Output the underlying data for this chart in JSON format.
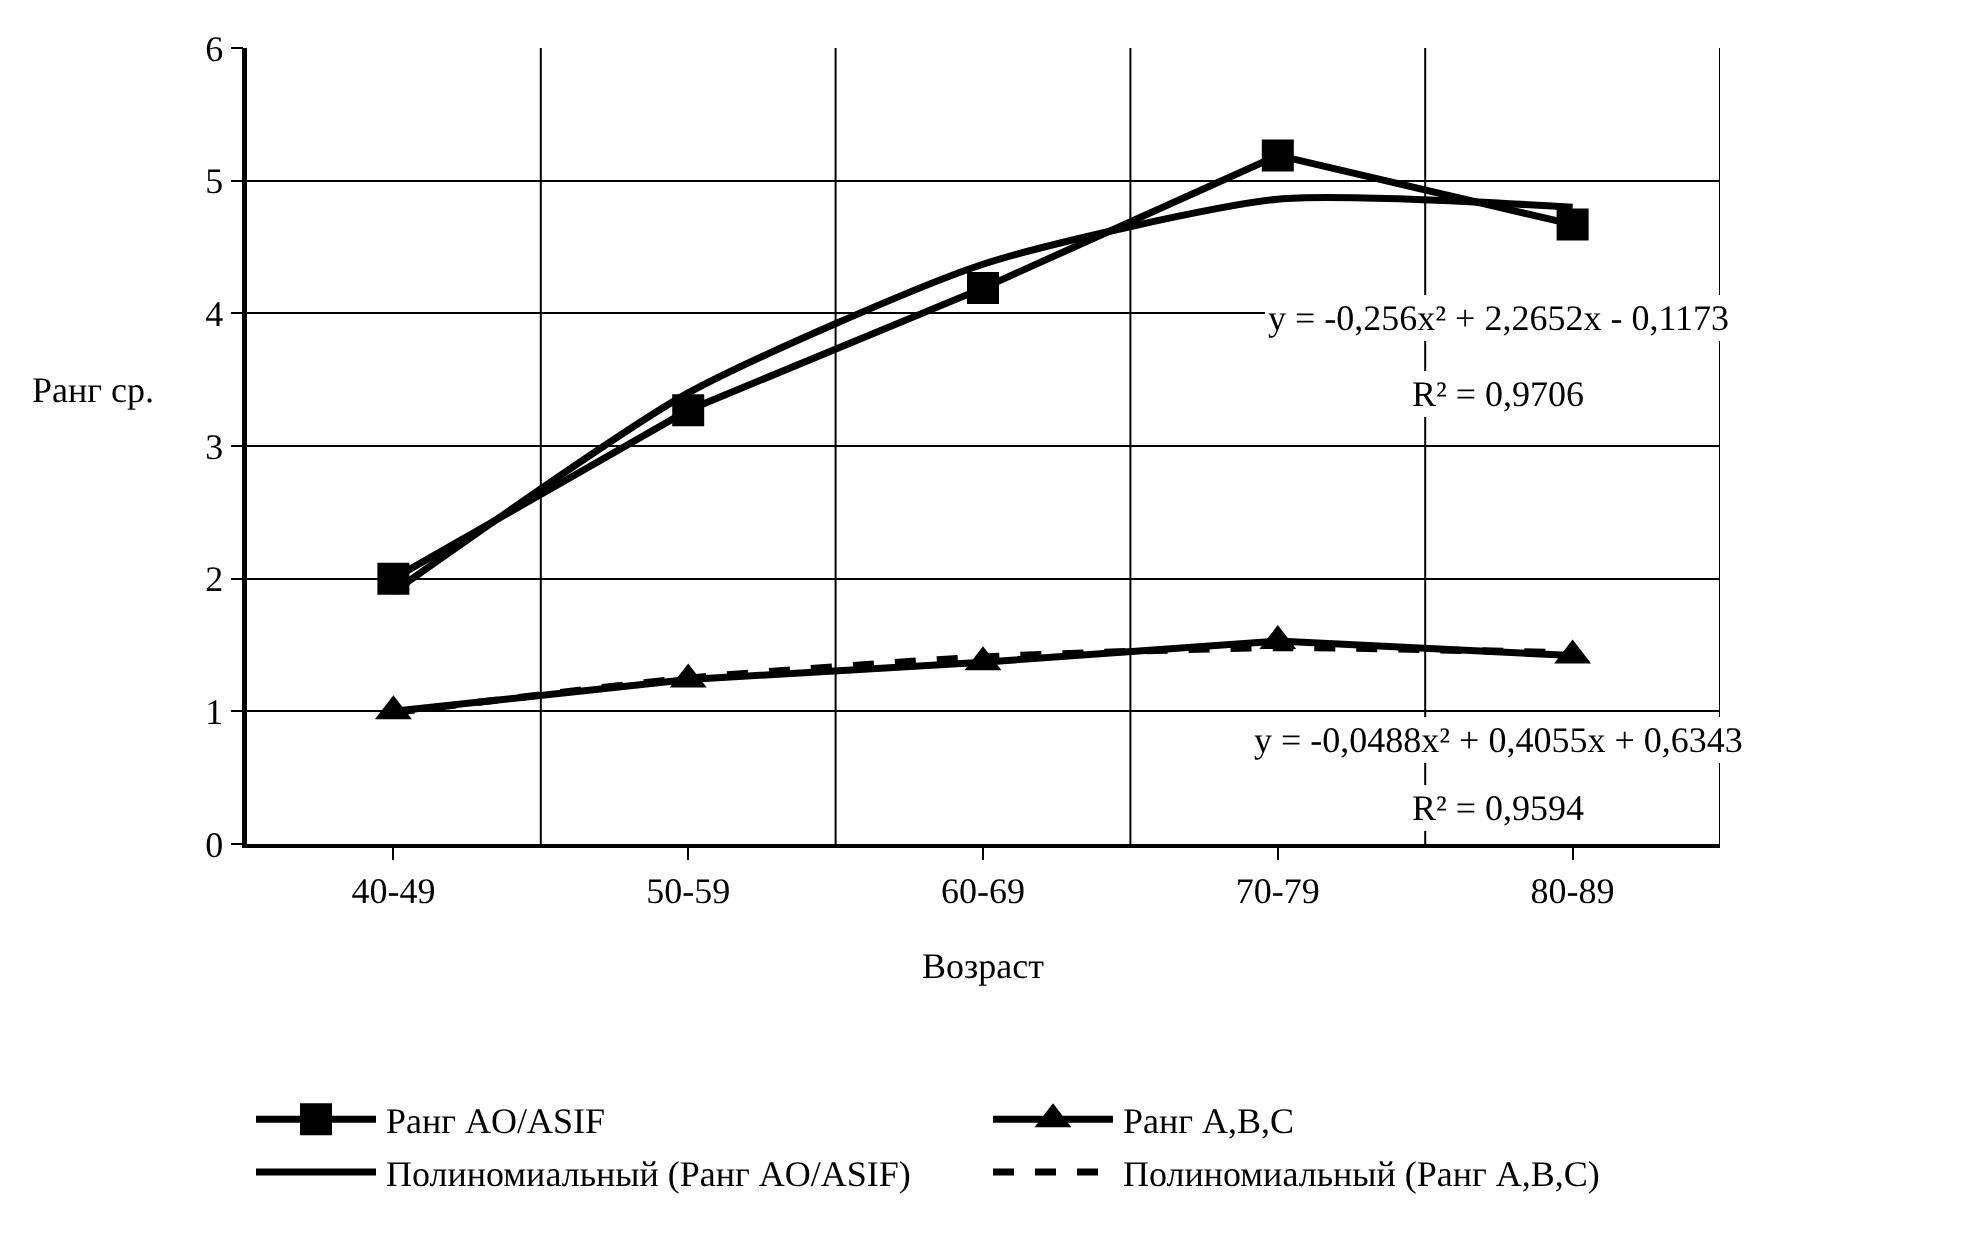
{
  "chart_data": {
    "type": "line",
    "xlabel": "Возраст",
    "ylabel": "Ранг ср.",
    "categories": [
      "40-49",
      "50-59",
      "60-69",
      "70-79",
      "80-89"
    ],
    "ylim": [
      0,
      6
    ],
    "yticks": [
      0,
      1,
      2,
      3,
      4,
      5,
      6
    ],
    "grid": true,
    "legend": "bottom",
    "series": [
      {
        "name": "Ранг AO/ASIF",
        "color": "#000000",
        "values": [
          2.0,
          3.27,
          4.19,
          5.19,
          4.67
        ],
        "marker": "square",
        "line_style": "solid"
      },
      {
        "name": "Ранг A,B,C",
        "color": "#000000",
        "values": [
          1.0,
          1.24,
          1.37,
          1.53,
          1.42
        ],
        "marker": "triangle",
        "line_style": "solid"
      },
      {
        "name": "Полиномиальный (Ранг AO/ASIF)",
        "color": "#000000",
        "values": [
          1.9,
          3.4,
          4.37,
          4.86,
          4.8
        ],
        "marker": "none",
        "line_style": "solid"
      },
      {
        "name": "Полиномиальный (Ранг A,B,C)",
        "color": "#000000",
        "values": [
          0.99,
          1.25,
          1.41,
          1.48,
          1.44
        ],
        "marker": "none",
        "line_style": "dashed"
      }
    ],
    "annotations": [
      "y = -0,256x² + 2,2652x - 0,1173",
      "R² = 0,9706",
      "y = -0,0488x² + 0,4055x + 0,6343",
      "R² = 0,9594"
    ]
  }
}
